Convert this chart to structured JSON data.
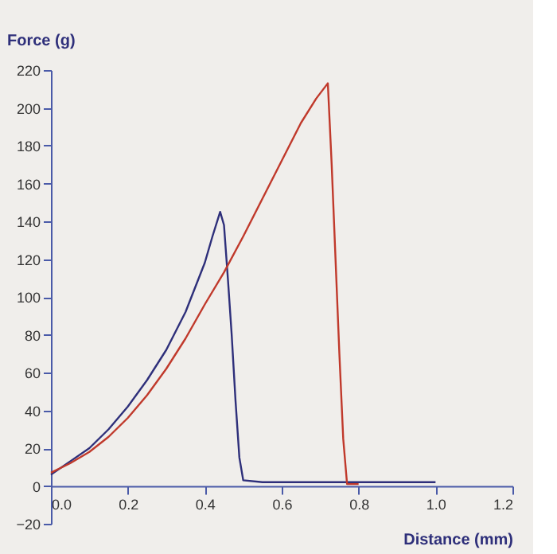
{
  "chart_data": {
    "type": "line",
    "xlabel": "Distance (mm)",
    "ylabel": "Force (g)",
    "xlim": [
      0,
      1.2
    ],
    "xticks": [
      {
        "value": 0,
        "label": "0.0"
      },
      0.2,
      0.4,
      0.6,
      0.8,
      {
        "value": 1,
        "label": "1.0"
      },
      1.2
    ],
    "ylim": [
      -20,
      220
    ],
    "yticks": [
      -20,
      0,
      20,
      40,
      60,
      80,
      100,
      120,
      140,
      160,
      180,
      200,
      220
    ],
    "grid": false,
    "line_style": "solid",
    "marker": "none",
    "series": [
      {
        "color": "#2e2f7a",
        "x": [
          0,
          0.05,
          0.1,
          0.15,
          0.2,
          0.25,
          0.3,
          0.35,
          0.4,
          0.42,
          0.44,
          0.45,
          0.46,
          0.47,
          0.48,
          0.49,
          0.5,
          0.55,
          0.6,
          0.7,
          0.8,
          0.9,
          1.0
        ],
        "values": [
          6,
          13,
          20,
          30,
          42,
          56,
          72,
          92,
          118,
          132,
          145,
          138,
          110,
          80,
          45,
          15,
          3,
          2,
          2,
          2,
          2,
          2,
          2
        ]
      },
      {
        "color": "#c0392b",
        "x": [
          0,
          0.05,
          0.1,
          0.15,
          0.2,
          0.25,
          0.3,
          0.35,
          0.4,
          0.45,
          0.5,
          0.55,
          0.6,
          0.65,
          0.69,
          0.72,
          0.73,
          0.74,
          0.75,
          0.76,
          0.77,
          0.8
        ],
        "values": [
          7,
          12,
          18,
          26,
          36,
          48,
          62,
          78,
          96,
          113,
          132,
          152,
          172,
          192,
          205,
          213,
          170,
          120,
          70,
          25,
          1,
          1
        ]
      }
    ]
  }
}
